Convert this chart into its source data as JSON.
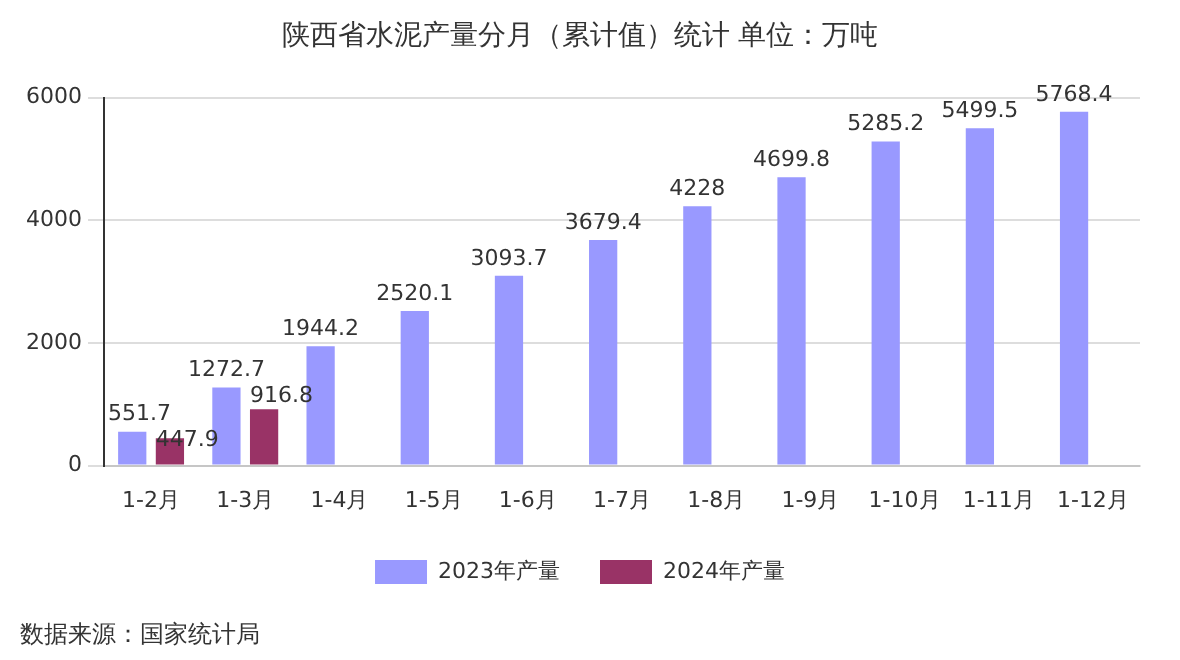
{
  "chart_data": {
    "type": "bar",
    "title": "陕西省水泥产量分月（累计值）统计 单位：万吨",
    "categories": [
      "1-2月",
      "1-3月",
      "1-4月",
      "1-5月",
      "1-6月",
      "1-7月",
      "1-8月",
      "1-9月",
      "1-10月",
      "1-11月",
      "1-12月"
    ],
    "series": [
      {
        "name": "2023年产量",
        "color": "#9999ff",
        "values": [
          551.7,
          1272.7,
          1944.2,
          2520.1,
          3093.7,
          3679.4,
          4228,
          4699.8,
          5285.2,
          5499.5,
          5768.4
        ]
      },
      {
        "name": "2024年产量",
        "color": "#993366",
        "values": [
          447.9,
          916.8,
          null,
          null,
          null,
          null,
          null,
          null,
          null,
          null,
          null
        ]
      }
    ],
    "ylim": [
      0,
      6000
    ],
    "yticks": [
      0,
      2000,
      4000,
      6000
    ],
    "grid": "y",
    "legend": "bottom",
    "data_labels": true,
    "annotations": [
      "数据来源：国家统计局"
    ]
  }
}
